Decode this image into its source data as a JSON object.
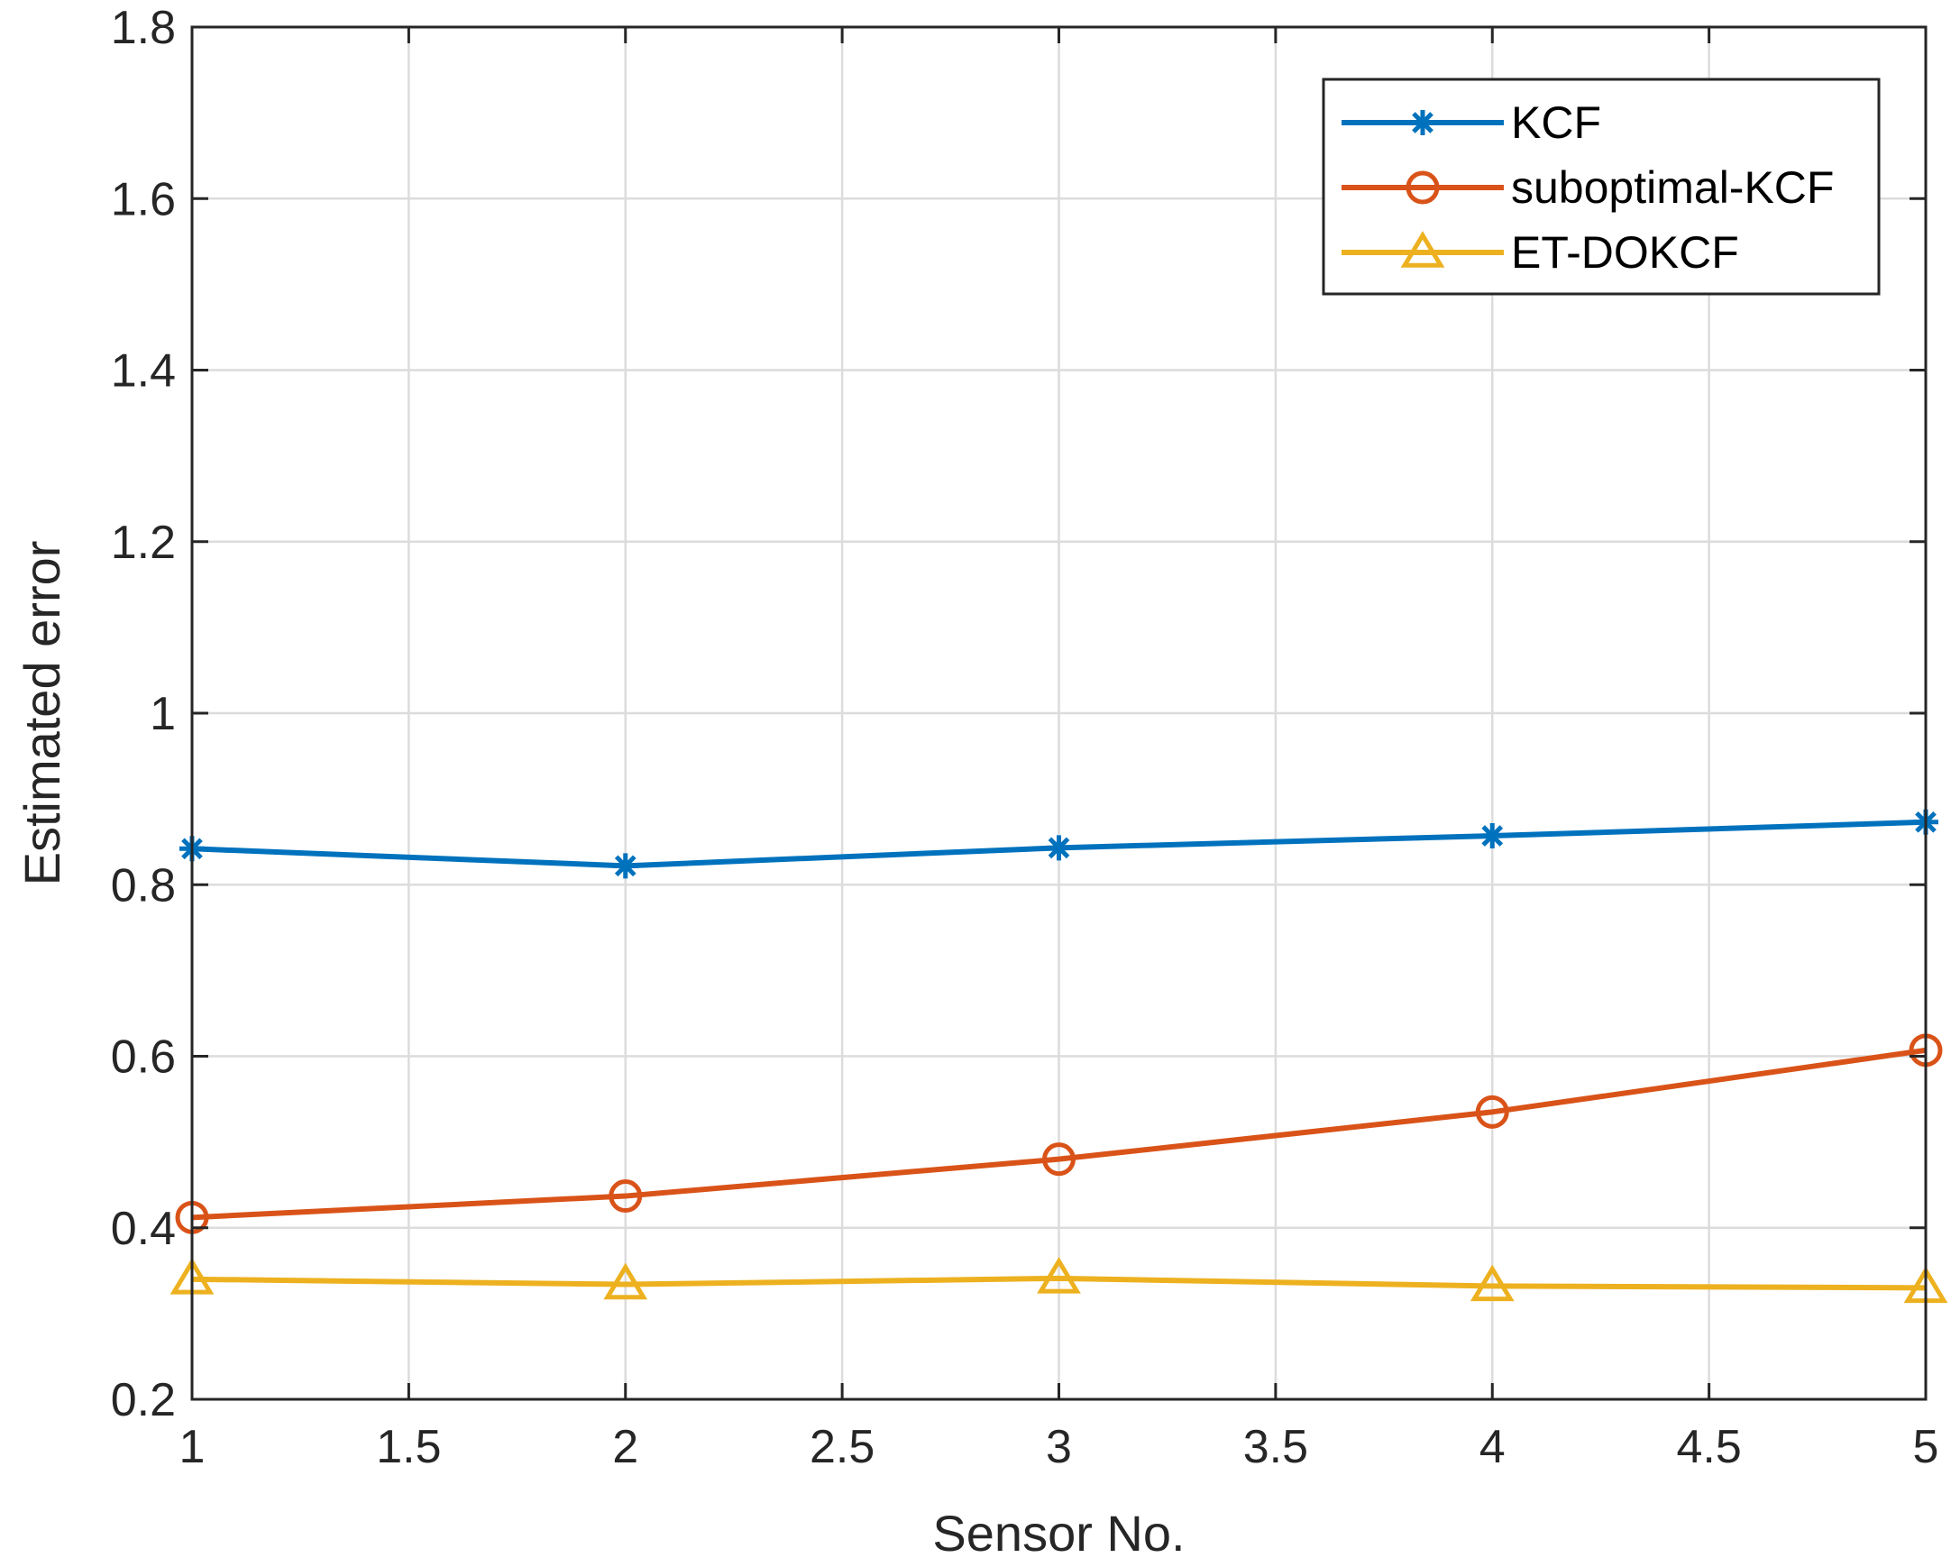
{
  "chart_data": {
    "type": "line",
    "title": "",
    "xlabel": "Sensor No.",
    "ylabel": "Estimated error",
    "xlim": [
      1,
      5
    ],
    "ylim": [
      0.2,
      1.8
    ],
    "xticks": [
      1,
      1.5,
      2,
      2.5,
      3,
      3.5,
      4,
      4.5,
      5
    ],
    "xtick_labels": [
      "1",
      "1.5",
      "2",
      "2.5",
      "3",
      "3.5",
      "4",
      "4.5",
      "5"
    ],
    "yticks": [
      0.2,
      0.4,
      0.6,
      0.8,
      1.0,
      1.2,
      1.4,
      1.6,
      1.8
    ],
    "ytick_labels": [
      "0.2",
      "0.4",
      "0.6",
      "0.8",
      "1",
      "1.2",
      "1.4",
      "1.6",
      "1.8"
    ],
    "grid": true,
    "legend_position": "top-right",
    "x": [
      1,
      2,
      3,
      4,
      5
    ],
    "series": [
      {
        "name": "KCF",
        "color": "#0072BD",
        "marker": "asterisk",
        "values": [
          0.842,
          0.822,
          0.843,
          0.857,
          0.873
        ]
      },
      {
        "name": "suboptimal-KCF",
        "color": "#D95319",
        "marker": "circle",
        "values": [
          0.412,
          0.437,
          0.48,
          0.535,
          0.607
        ]
      },
      {
        "name": "ET-DOKCF",
        "color": "#EDB120",
        "marker": "triangle",
        "values": [
          0.34,
          0.334,
          0.341,
          0.332,
          0.33
        ]
      }
    ]
  }
}
